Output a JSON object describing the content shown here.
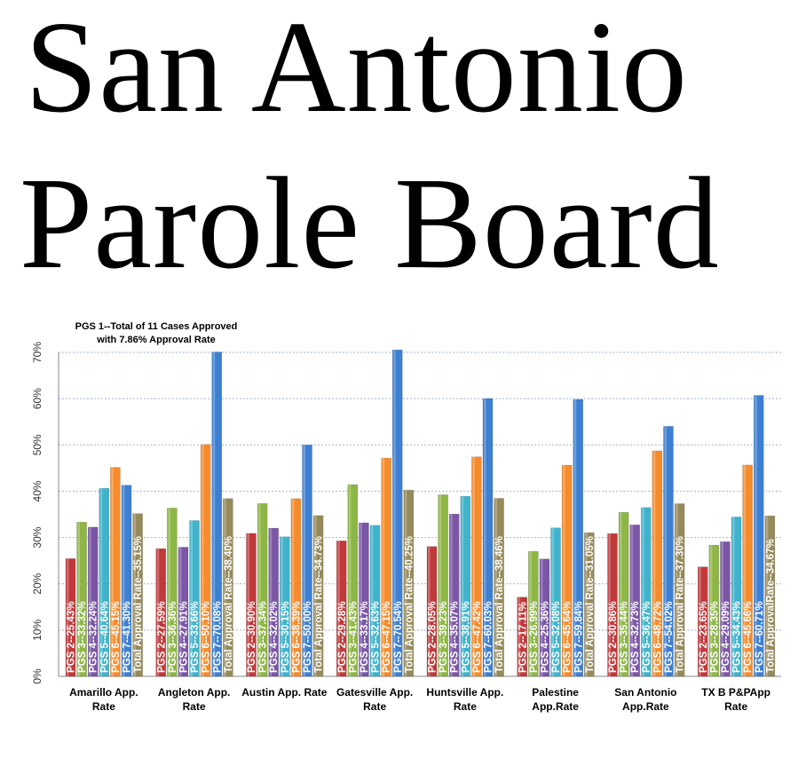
{
  "headline": {
    "line1": "San Antonio",
    "line2": "Parole Board"
  },
  "chart_data": {
    "type": "bar",
    "annotation": [
      "PGS 1--Total of 11 Cases Approved",
      "with 7.86% Approval Rate"
    ],
    "ylim": [
      0,
      70
    ],
    "y_ticks": [
      "0%",
      "10%",
      "20%",
      "30%",
      "40%",
      "50%",
      "60%",
      "70%"
    ],
    "grid": true,
    "categories": [
      [
        "Amarillo App.",
        "Rate"
      ],
      [
        "Angleton App.",
        "Rate"
      ],
      [
        "Austin App. Rate"
      ],
      [
        "Gatesville App.",
        "Rate"
      ],
      [
        "Huntsville App.",
        "Rate"
      ],
      [
        "Palestine",
        "App.Rate"
      ],
      [
        "San Antonio",
        "App.Rate"
      ],
      [
        "TX B P&PApp",
        "Rate"
      ]
    ],
    "colors": [
      "#c0393b",
      "#8db645",
      "#7b56a6",
      "#3fb3cb",
      "#f68b2b",
      "#3d7fd1",
      "#968a5b"
    ],
    "groups": [
      {
        "values": [
          25.43,
          33.32,
          32.24,
          40.64,
          45.15,
          41.3,
          35.15
        ],
        "labels": [
          "PGS 2--25.43%",
          "PGS 3--33.32%",
          "PGS 4--32.24%",
          "PGS 5--40.64%",
          "PGS 6--45.15%",
          "PGS 7--41.30%",
          "Total Approval Rate--35.15%"
        ]
      },
      {
        "values": [
          27.59,
          36.36,
          27.91,
          33.66,
          50.1,
          70.08,
          38.4
        ],
        "labels": [
          "PGS 2--27.59%",
          "PGS 3--36.36%",
          "PGS 4--27.91%",
          "PGS 5--33.66%",
          "PGS 6--50.10%",
          "PGS 7--70.08%",
          "Total Approval Rate--38.40%"
        ]
      },
      {
        "values": [
          30.9,
          37.34,
          32.02,
          30.15,
          38.39,
          50.0,
          34.73
        ],
        "labels": [
          "PGS 2--30.90%",
          "PGS 3--37.34%",
          "PGS 4--32.02%",
          "PGS 5--30.15%",
          "PGS 6--38.39%",
          "PGS 7--50.00%",
          "Total Approval Rate--34.73%"
        ]
      },
      {
        "values": [
          29.28,
          41.43,
          33.17,
          32.63,
          47.15,
          70.54,
          40.25
        ],
        "labels": [
          "PGS 2--29.28%",
          "PGS 3--41.43%",
          "PGS 4--33.17%",
          "PGS 5--32.63%",
          "PGS 6--47.15%",
          "PGS 7--70.54%",
          "Total Approval Rate--40.25%"
        ]
      },
      {
        "values": [
          28.05,
          39.23,
          35.07,
          38.91,
          47.42,
          60.03,
          38.46
        ],
        "labels": [
          "PGS 2--28.05%",
          "PGS 3--39.23%",
          "PGS 4--35.07%",
          "PGS 5--38.91%",
          "PGS 6--47.42%",
          "PGS 7--60.03%",
          "Total Approval Rate--38.46%"
        ]
      },
      {
        "values": [
          17.11,
          26.99,
          25.36,
          32.08,
          45.64,
          59.84,
          31.05
        ],
        "labels": [
          "PGS 2--17.11%",
          "PGS 3--26.99%",
          "PGS 4--25.36%",
          "PGS 5--32.08%",
          "PGS 6--45.64%",
          "PGS 7--59.84%",
          "Total Approval Rate--31.05%"
        ]
      },
      {
        "values": [
          30.86,
          35.44,
          32.73,
          36.47,
          48.72,
          54.02,
          37.3
        ],
        "labels": [
          "PGS 2--30.86%",
          "PGS 3--35.44%",
          "PGS 4--32.73%",
          "PGS 5--36.47%",
          "PGS 6--48.72%",
          "PGS 7--54.02%",
          "Total Approval Rate--37.30%"
        ]
      },
      {
        "values": [
          23.65,
          28.35,
          29.09,
          34.43,
          45.66,
          60.71,
          34.67
        ],
        "labels": [
          "PGS 2--23.65%",
          "PGS 3--28.35%",
          "PGS 4--29.09%",
          "PGS 5--34.43%",
          "PGS 6--45.66%",
          "PGS 7--60.71%",
          "Total ApprovalRate--34.67%"
        ]
      }
    ]
  }
}
